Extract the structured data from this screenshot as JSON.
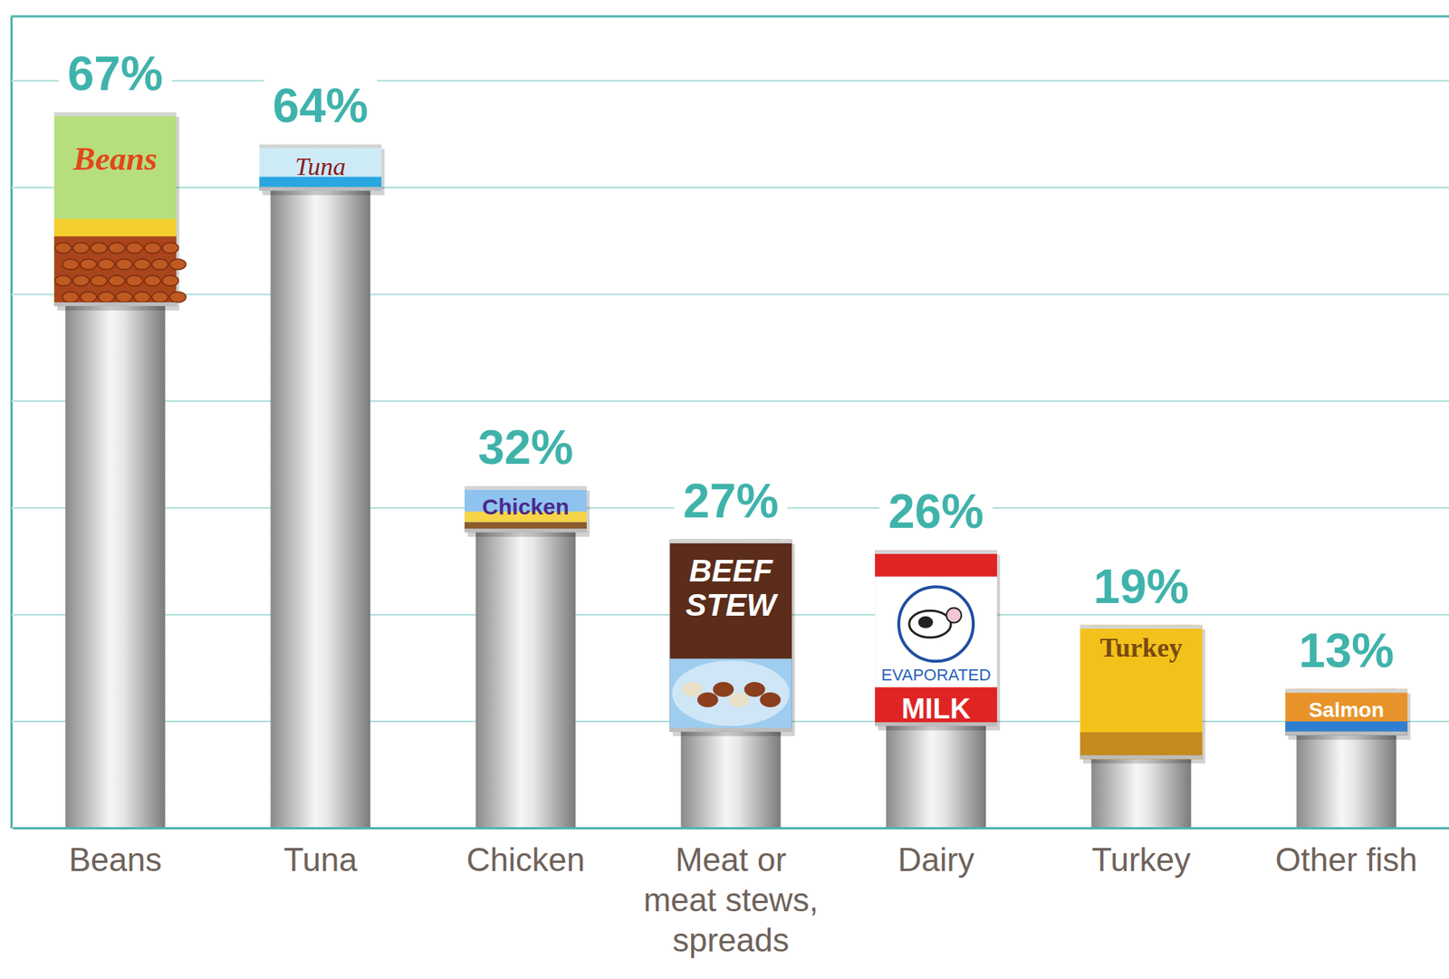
{
  "chart_data": {
    "type": "bar",
    "categories": [
      "Beans",
      "Tuna",
      "Chicken",
      "Meat or meat stews, spreads",
      "Dairy",
      "Turkey",
      "Other fish"
    ],
    "values": [
      67,
      64,
      32,
      27,
      26,
      19,
      13
    ],
    "value_labels": [
      "67%",
      "64%",
      "32%",
      "27%",
      "26%",
      "19%",
      "13%"
    ],
    "colors": [
      "#b6de7c",
      "#cdeaf7",
      "#8fc3ef",
      "#5b2d1a",
      "#e02424",
      "#f2c21b",
      "#e8932a"
    ],
    "annotations": [
      "Beans",
      "Tuna",
      "Chicken",
      "BEEF STEW",
      "EVAPORATED MILK",
      "Turkey",
      "Salmon"
    ],
    "ylim": [
      0,
      76
    ],
    "yticks": [
      0,
      10,
      20,
      30,
      40,
      50,
      60,
      70
    ],
    "grid": true,
    "data_labels": true,
    "tick_labels": "x"
  }
}
